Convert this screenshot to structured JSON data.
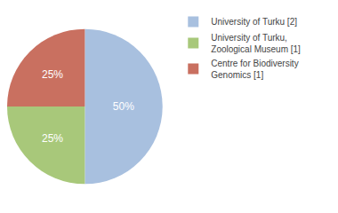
{
  "chart_data": {
    "type": "pie",
    "categories": [
      "University of Turku [2]",
      "University of Turku,\nZoological Museum [1]",
      "Centre for Biodiversity\nGenomics [1]"
    ],
    "values": [
      50,
      25,
      25
    ],
    "value_labels": [
      "50%",
      "25%",
      "25%"
    ],
    "colors": [
      "#a8c0df",
      "#a8c87a",
      "#c97060"
    ],
    "data_labels": true,
    "legend": "upper right"
  }
}
